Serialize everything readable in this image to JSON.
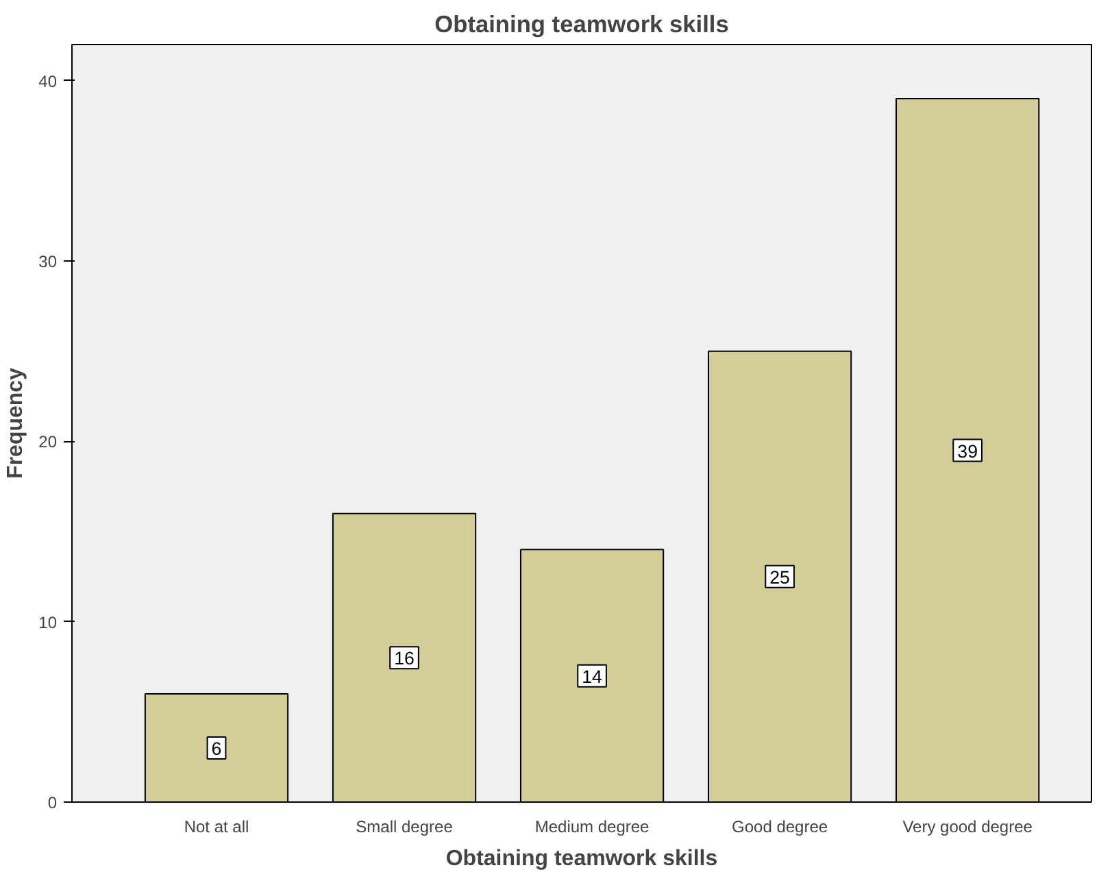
{
  "chart_data": {
    "type": "bar",
    "title": "Obtaining teamwork skills",
    "xlabel": "Obtaining teamwork skills",
    "ylabel": "Frequency",
    "categories": [
      "Not at all",
      "Small degree",
      "Medium degree",
      "Good degree",
      "Very good degree"
    ],
    "values": [
      6,
      16,
      14,
      25,
      39
    ],
    "color": "#d3ce99",
    "ylim": [
      0,
      42
    ],
    "yticks": [
      0,
      10,
      20,
      30,
      40
    ],
    "grid": false,
    "data_labels": true
  }
}
